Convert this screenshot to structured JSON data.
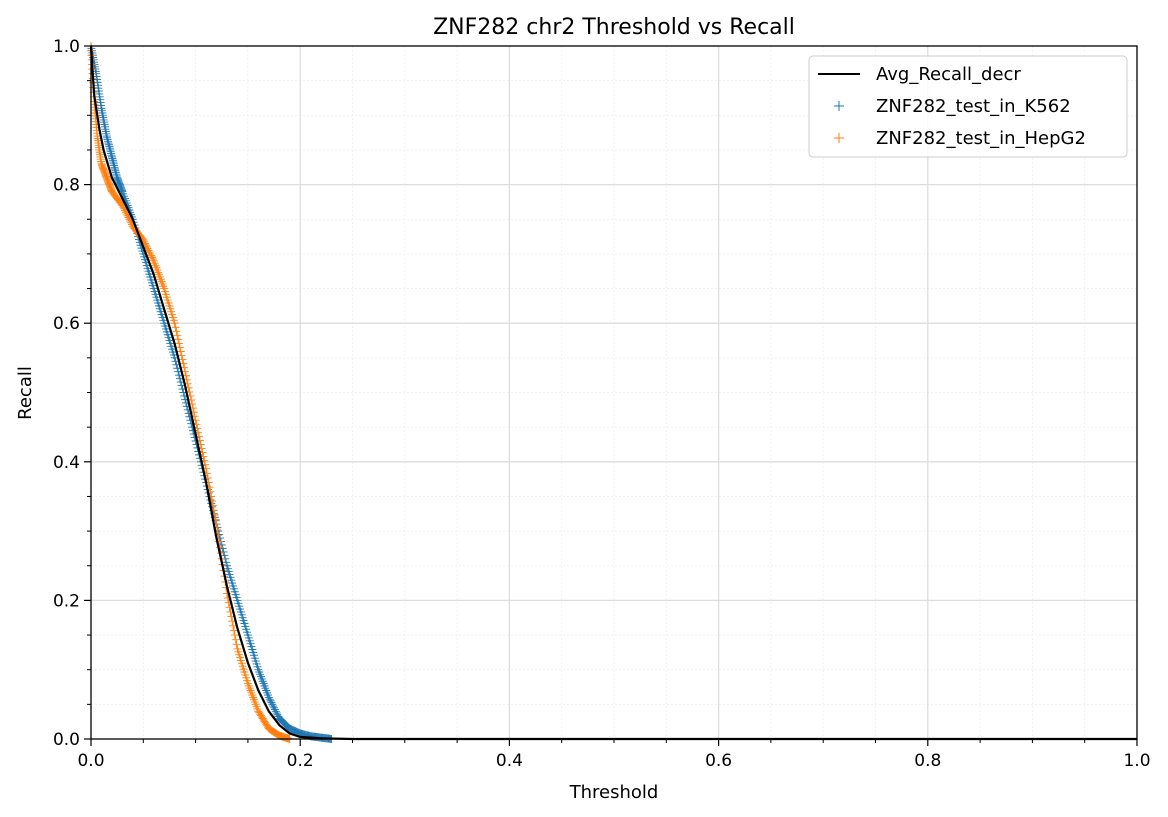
{
  "chart_data": {
    "type": "scatter",
    "title": "ZNF282 chr2 Threshold vs Recall",
    "xlabel": "Threshold",
    "ylabel": "Recall",
    "xlim": [
      0.0,
      1.0
    ],
    "ylim": [
      0.0,
      1.0
    ],
    "xticks": [
      "0.0",
      "0.2",
      "0.4",
      "0.6",
      "0.8",
      "1.0"
    ],
    "yticks": [
      "0.0",
      "0.2",
      "0.4",
      "0.6",
      "0.8",
      "1.0"
    ],
    "grid": true,
    "legend_position": "top-right",
    "series": [
      {
        "name": "Avg_Recall_decr",
        "kind": "line",
        "color": "#000000",
        "x": [
          0.0,
          0.003,
          0.008,
          0.012,
          0.02,
          0.03,
          0.04,
          0.05,
          0.06,
          0.07,
          0.08,
          0.09,
          0.1,
          0.11,
          0.12,
          0.13,
          0.14,
          0.15,
          0.16,
          0.17,
          0.18,
          0.19,
          0.2,
          0.22,
          0.25,
          0.3,
          0.4,
          0.5,
          0.6,
          0.7,
          0.8,
          0.9,
          1.0
        ],
        "y": [
          1.0,
          0.93,
          0.88,
          0.85,
          0.81,
          0.78,
          0.75,
          0.71,
          0.67,
          0.62,
          0.57,
          0.51,
          0.44,
          0.37,
          0.29,
          0.22,
          0.16,
          0.11,
          0.07,
          0.04,
          0.02,
          0.008,
          0.003,
          0.001,
          0.0,
          0.0,
          0.0,
          0.0,
          0.0,
          0.0,
          0.0,
          0.0,
          0.0
        ]
      },
      {
        "name": "ZNF282_test_in_K562",
        "kind": "points",
        "marker": "+",
        "color": "#1f77b4",
        "x": [
          0.0,
          0.005,
          0.01,
          0.015,
          0.02,
          0.025,
          0.03,
          0.04,
          0.05,
          0.06,
          0.07,
          0.08,
          0.09,
          0.1,
          0.11,
          0.12,
          0.13,
          0.14,
          0.15,
          0.16,
          0.17,
          0.18,
          0.19,
          0.2,
          0.21,
          0.22,
          0.23
        ],
        "y": [
          1.0,
          0.96,
          0.91,
          0.87,
          0.84,
          0.81,
          0.79,
          0.75,
          0.7,
          0.65,
          0.6,
          0.55,
          0.49,
          0.43,
          0.37,
          0.31,
          0.25,
          0.2,
          0.15,
          0.1,
          0.06,
          0.03,
          0.015,
          0.008,
          0.004,
          0.002,
          0.0
        ]
      },
      {
        "name": "ZNF282_test_in_HepG2",
        "kind": "points",
        "marker": "+",
        "color": "#ff7f0e",
        "x": [
          0.0,
          0.003,
          0.006,
          0.01,
          0.015,
          0.02,
          0.03,
          0.04,
          0.05,
          0.06,
          0.07,
          0.08,
          0.09,
          0.1,
          0.11,
          0.12,
          0.13,
          0.14,
          0.15,
          0.16,
          0.17,
          0.18,
          0.19
        ],
        "y": [
          1.0,
          0.92,
          0.87,
          0.83,
          0.81,
          0.79,
          0.77,
          0.74,
          0.72,
          0.69,
          0.65,
          0.6,
          0.53,
          0.46,
          0.39,
          0.31,
          0.21,
          0.13,
          0.08,
          0.04,
          0.015,
          0.005,
          0.0
        ]
      }
    ]
  }
}
